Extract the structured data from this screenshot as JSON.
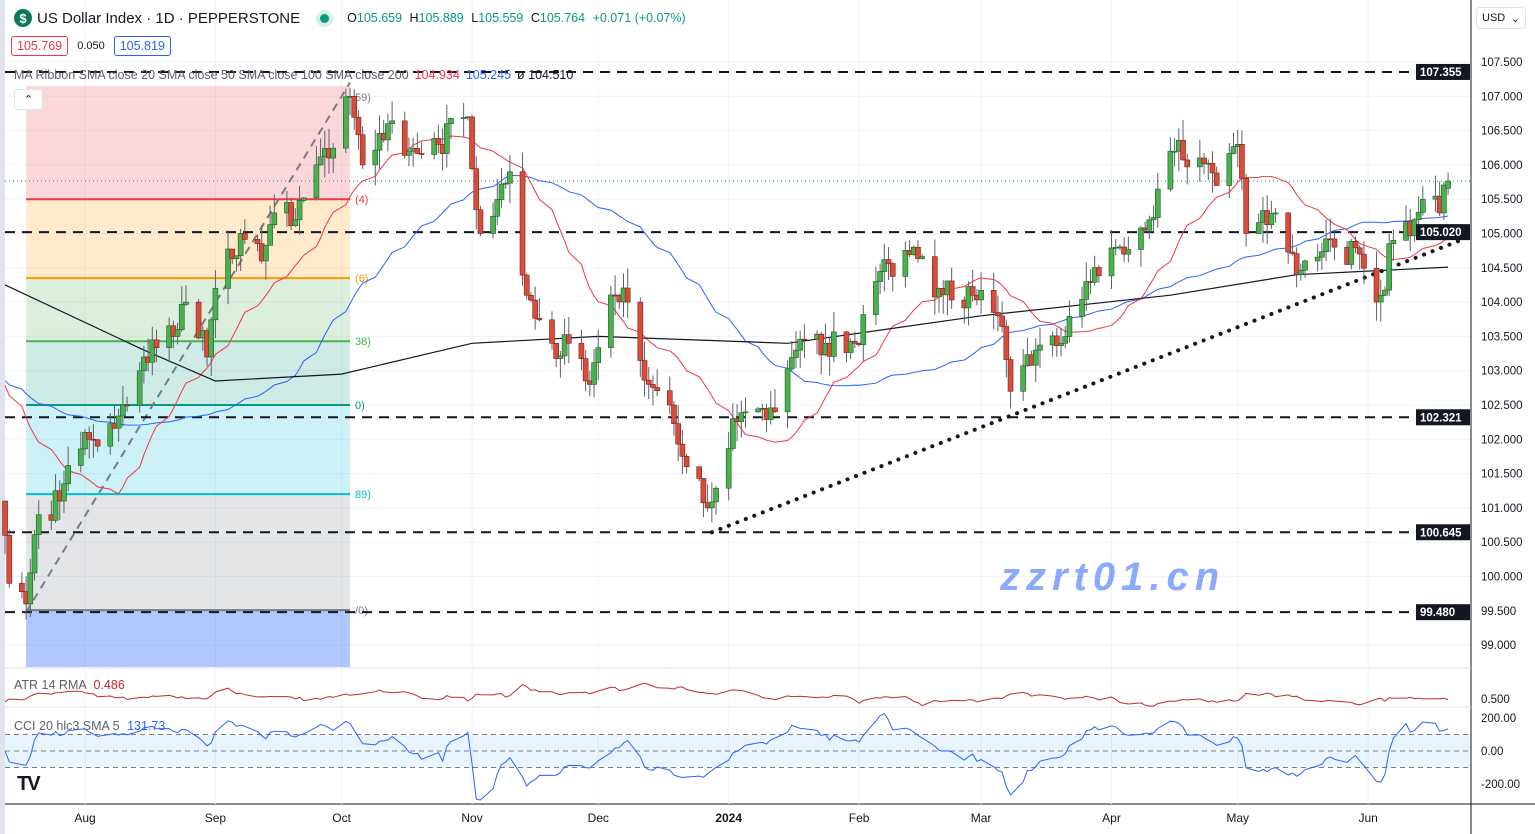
{
  "header": {
    "symbol_icon": "dollar-icon",
    "title": "US Dollar Index · 1D · PEPPERSTONE",
    "market_status": "open",
    "open_label": "O",
    "open": "105.659",
    "high_label": "H",
    "high": "105.889",
    "low_label": "L",
    "low": "105.559",
    "close_label": "C",
    "close": "105.764",
    "change": "+0.071 (+0.07%)"
  },
  "quote": {
    "sell": "105.769",
    "spread": "0.050",
    "buy": "105.819"
  },
  "currency_selector": {
    "value": "USD"
  },
  "ma_legend": {
    "label": "MA Ribbon SMA close 20 SMA close 50 SMA close 100 SMA close 200",
    "v1": "104.934",
    "v2": "105.245",
    "v3": "ø 104.510"
  },
  "atr_legend": {
    "label": "ATR 14 RMA",
    "value": "0.486"
  },
  "cci_legend": {
    "label": "CCI 20 hlc3 SMA 5",
    "value": "131.73"
  },
  "watermark": "zzrt01.cn",
  "colors": {
    "up": "#089981",
    "up_fill": "#4caf50",
    "down": "#f23645",
    "down_fill": "#d84d3a",
    "sma20": "#f23645",
    "sma50": "#2962ff",
    "sma200": "#131722",
    "atr": "#c62828",
    "cci": "#2962ff"
  },
  "chart_data": {
    "type": "candlestick",
    "ylim": [
      98.7,
      107.75
    ],
    "y_ticks": [
      "107.500",
      "107.000",
      "106.500",
      "106.000",
      "105.500",
      "105.000",
      "104.500",
      "104.000",
      "103.500",
      "103.000",
      "102.500",
      "102.000",
      "101.500",
      "101.000",
      "100.500",
      "100.000",
      "99.500",
      "99.000"
    ],
    "x_ticks": [
      {
        "label": "Aug",
        "date": "2023-08-01"
      },
      {
        "label": "Sep",
        "date": "2023-09-01"
      },
      {
        "label": "Oct",
        "date": "2023-10-01"
      },
      {
        "label": "Nov",
        "date": "2023-11-01"
      },
      {
        "label": "Dec",
        "date": "2023-12-01"
      },
      {
        "label": "2024",
        "date": "2024-01-01"
      },
      {
        "label": "Feb",
        "date": "2024-02-01"
      },
      {
        "label": "Mar",
        "date": "2024-03-01"
      },
      {
        "label": "Apr",
        "date": "2024-04-01"
      },
      {
        "label": "May",
        "date": "2024-05-01"
      },
      {
        "label": "Jun",
        "date": "2024-06-01"
      }
    ],
    "closes": [
      [
        "2023-07-13",
        100.6
      ],
      [
        "2023-07-14",
        99.9
      ],
      [
        "2023-07-18",
        99.6
      ],
      [
        "2023-07-21",
        100.9
      ],
      [
        "2023-07-26",
        101.1
      ],
      [
        "2023-08-01",
        102.1
      ],
      [
        "2023-08-04",
        101.9
      ],
      [
        "2023-08-10",
        102.5
      ],
      [
        "2023-08-15",
        103.2
      ],
      [
        "2023-08-22",
        103.5
      ],
      [
        "2023-08-25",
        104.0
      ],
      [
        "2023-08-30",
        103.2
      ],
      [
        "2023-09-01",
        104.2
      ],
      [
        "2023-09-07",
        105.0
      ],
      [
        "2023-09-12",
        104.6
      ],
      [
        "2023-09-15",
        105.3
      ],
      [
        "2023-09-20",
        105.2
      ],
      [
        "2023-09-25",
        106.0
      ],
      [
        "2023-09-28",
        106.1
      ],
      [
        "2023-10-03",
        107.0
      ],
      [
        "2023-10-06",
        106.0
      ],
      [
        "2023-10-12",
        106.6
      ],
      [
        "2023-10-17",
        106.2
      ],
      [
        "2023-10-24",
        106.3
      ],
      [
        "2023-10-31",
        106.7
      ],
      [
        "2023-11-03",
        105.0
      ],
      [
        "2023-11-10",
        105.9
      ],
      [
        "2023-11-14",
        104.1
      ],
      [
        "2023-11-20",
        103.4
      ],
      [
        "2023-11-24",
        103.4
      ],
      [
        "2023-11-29",
        102.8
      ],
      [
        "2023-12-05",
        104.1
      ],
      [
        "2023-12-08",
        104.0
      ],
      [
        "2023-12-13",
        102.8
      ],
      [
        "2023-12-18",
        102.5
      ],
      [
        "2023-12-22",
        101.6
      ],
      [
        "2023-12-27",
        101.0
      ],
      [
        "2024-01-02",
        102.3
      ],
      [
        "2024-01-05",
        102.4
      ],
      [
        "2024-01-12",
        102.4
      ],
      [
        "2024-01-17",
        103.3
      ],
      [
        "2024-01-24",
        103.4
      ],
      [
        "2024-01-31",
        103.4
      ],
      [
        "2024-02-05",
        104.3
      ],
      [
        "2024-02-14",
        104.8
      ],
      [
        "2024-02-20",
        104.2
      ],
      [
        "2024-02-28",
        104.1
      ],
      [
        "2024-03-05",
        103.8
      ],
      [
        "2024-03-08",
        102.7
      ],
      [
        "2024-03-14",
        103.3
      ],
      [
        "2024-03-20",
        103.4
      ],
      [
        "2024-03-26",
        104.3
      ],
      [
        "2024-04-02",
        104.8
      ],
      [
        "2024-04-10",
        105.2
      ],
      [
        "2024-04-16",
        106.2
      ],
      [
        "2024-04-22",
        106.1
      ],
      [
        "2024-04-26",
        105.7
      ],
      [
        "2024-05-01",
        106.3
      ],
      [
        "2024-05-03",
        105.0
      ],
      [
        "2024-05-10",
        105.3
      ],
      [
        "2024-05-15",
        104.4
      ],
      [
        "2024-05-17",
        104.6
      ],
      [
        "2024-05-24",
        104.8
      ],
      [
        "2024-05-30",
        104.7
      ],
      [
        "2024-06-04",
        104.1
      ],
      [
        "2024-06-07",
        104.9
      ],
      [
        "2024-06-12",
        105.2
      ],
      [
        "2024-06-14",
        105.5
      ],
      [
        "2024-06-18",
        105.3
      ],
      [
        "2024-06-20",
        105.764
      ]
    ],
    "last_candle": {
      "date": "2024-06-20",
      "open": 105.659,
      "high": 105.889,
      "low": 105.559,
      "close": 105.764
    },
    "sma200": [
      [
        "2023-07-13",
        104.25
      ],
      [
        "2023-08-15",
        103.3
      ],
      [
        "2023-09-01",
        102.85
      ],
      [
        "2023-10-01",
        102.95
      ],
      [
        "2023-11-01",
        103.4
      ],
      [
        "2023-12-01",
        103.5
      ],
      [
        "2024-01-15",
        103.4
      ],
      [
        "2024-03-01",
        103.8
      ],
      [
        "2024-04-15",
        104.1
      ],
      [
        "2024-05-15",
        104.4
      ],
      [
        "2024-06-20",
        104.51
      ]
    ],
    "horizontal_levels": [
      {
        "price": 107.355,
        "label": "107.355"
      },
      {
        "price": 105.02,
        "label": "105.020"
      },
      {
        "price": 102.321,
        "label": "102.321"
      },
      {
        "price": 100.645,
        "label": "100.645"
      },
      {
        "price": 99.48,
        "label": "99.480"
      }
    ],
    "trendline": {
      "from": [
        "2023-12-28",
        100.645
      ],
      "to": [
        "2024-06-25",
        104.95
      ],
      "style": "dotted"
    },
    "fib": {
      "from_date": "2023-07-18",
      "to_date": "2023-10-03",
      "diagonal": {
        "from": [
          "2023-07-18",
          99.48
        ],
        "to": [
          "2023-10-03",
          107.2
        ]
      },
      "levels": [
        {
          "price": 107.15,
          "label": "59)",
          "color": "#787b86"
        },
        {
          "price": 105.5,
          "label": "(4)",
          "color": "#f23645"
        },
        {
          "price": 104.35,
          "label": "(6)",
          "color": "#ff9800"
        },
        {
          "price": 103.43,
          "label": "38)",
          "color": "#4caf50"
        },
        {
          "price": 102.5,
          "label": "0)",
          "color": "#089981"
        },
        {
          "price": 101.2,
          "label": "89)",
          "color": "#00bcd4"
        },
        {
          "price": 99.51,
          "label": "/0)",
          "color": "#787b86"
        },
        {
          "price": 98.68,
          "label": "",
          "color": "#2962ff"
        }
      ]
    },
    "atr": {
      "current": 0.486,
      "axis_tick": "0.500"
    },
    "cci": {
      "current": 131.73,
      "axis_ticks": [
        "200.00",
        "0.00",
        "-200.00"
      ],
      "band": [
        100,
        -100
      ]
    }
  }
}
